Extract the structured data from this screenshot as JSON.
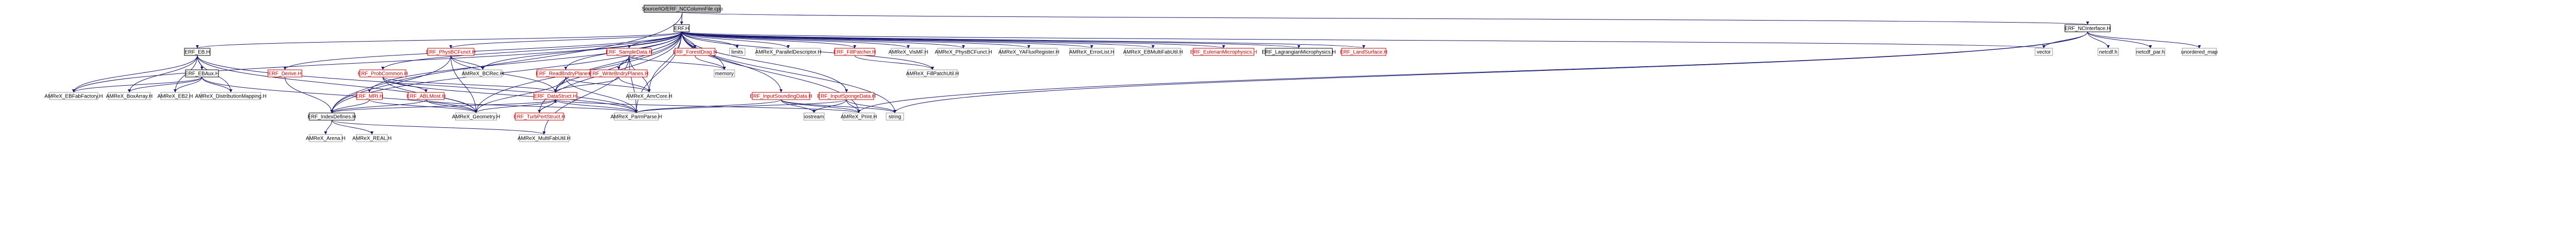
{
  "colors": {
    "edge": "#191970",
    "node_border_plain": "#999999",
    "node_border_documented": "#000000",
    "node_border_link": "#bf0000",
    "root_fill": "#bfbfbf"
  },
  "nodes": [
    {
      "id": "root",
      "label": "Source/IO/ERF_NCColumnFile.cpp",
      "style": "root"
    },
    {
      "id": "erf_h",
      "label": "ERF.H",
      "style": "black"
    },
    {
      "id": "ncinterface_h",
      "label": "ERF_NCInterface.H",
      "style": "black"
    },
    {
      "id": "eb_h",
      "label": "ERF_EB.H",
      "style": "black"
    },
    {
      "id": "ebaux_h",
      "label": "ERF_EBAux.H",
      "style": "black"
    },
    {
      "id": "derive_h",
      "label": "ERF_Derive.H",
      "style": "red"
    },
    {
      "id": "physbcfunct_h",
      "label": "ERF_PhysBCFunct.H",
      "style": "red"
    },
    {
      "id": "probcommon_h",
      "label": "ERF_ProbCommon.H",
      "style": "red"
    },
    {
      "id": "mri_h",
      "label": "ERF_MRI.H",
      "style": "red"
    },
    {
      "id": "ablmost_h",
      "label": "ERF_ABLMost.H",
      "style": "red"
    },
    {
      "id": "sampledata_h",
      "label": "ERF_SampleData.H",
      "style": "red"
    },
    {
      "id": "readbndry_h",
      "label": "ERF_ReadBndryPlanes.H",
      "style": "red"
    },
    {
      "id": "writebndry_h",
      "label": "ERF_WriteBndryPlanes.H",
      "style": "red"
    },
    {
      "id": "datastruct_h",
      "label": "ERF_DataStruct.H",
      "style": "red"
    },
    {
      "id": "turbpert_h",
      "label": "ERF_TurbPertStruct.H",
      "style": "red"
    },
    {
      "id": "forestdrag_h",
      "label": "ERF_ForestDrag.H",
      "style": "red"
    },
    {
      "id": "limits",
      "label": "limits",
      "style": "plain"
    },
    {
      "id": "paralleldesc_h",
      "label": "AMReX_ParallelDescriptor.H",
      "style": "plain"
    },
    {
      "id": "fillpatcher_h",
      "label": "ERF_FillPatcher.H",
      "style": "red"
    },
    {
      "id": "vismf_h",
      "label": "AMReX_VisMF.H",
      "style": "plain"
    },
    {
      "id": "amrex_physbc_h",
      "label": "AMReX_PhysBCFunct.H",
      "style": "plain"
    },
    {
      "id": "fluxregister_h",
      "label": "AMReX_YAFluxRegister.H",
      "style": "plain"
    },
    {
      "id": "errorlist_h",
      "label": "AMReX_ErrorList.H",
      "style": "plain"
    },
    {
      "id": "ebmultifab_h",
      "label": "AMReX_EBMultiFabUtil.H",
      "style": "plain"
    },
    {
      "id": "eulerian_h",
      "label": "ERF_EulerianMicrophysics.H",
      "style": "red"
    },
    {
      "id": "lagrangian_h",
      "label": "ERF_LagrangianMicrophysics.H",
      "style": "black"
    },
    {
      "id": "landsurface_h",
      "label": "ERF_LandSurface.H",
      "style": "red"
    },
    {
      "id": "vector",
      "label": "vector",
      "style": "plain"
    },
    {
      "id": "netcdf_h",
      "label": "netcdf.h",
      "style": "plain"
    },
    {
      "id": "netcdf_par_h",
      "label": "netcdf_par.h",
      "style": "plain"
    },
    {
      "id": "unordered_map",
      "label": "unordered_map",
      "style": "plain"
    },
    {
      "id": "bcrec_h",
      "label": "AMReX_BCRec.H",
      "style": "plain"
    },
    {
      "id": "memory",
      "label": "memory",
      "style": "plain"
    },
    {
      "id": "fillpatchutil_h",
      "label": "AMReX_FillPatchUtil.H",
      "style": "plain"
    },
    {
      "id": "ebfabfactory_h",
      "label": "AMReX_EBFabFactory.H",
      "style": "plain"
    },
    {
      "id": "boxarray_h",
      "label": "AMReX_BoxArray.H",
      "style": "plain"
    },
    {
      "id": "eb2_h",
      "label": "AMReX_EB2.H",
      "style": "plain"
    },
    {
      "id": "distmapping_h",
      "label": "AMReX_DistributionMapping.H",
      "style": "plain"
    },
    {
      "id": "amrcore_h",
      "label": "AMReX_AmrCore.H",
      "style": "plain"
    },
    {
      "id": "inputsounding_h",
      "label": "ERF_InputSoundingData.H",
      "style": "red"
    },
    {
      "id": "inputsponge_h",
      "label": "ERF_InputSpongeData.H",
      "style": "red"
    },
    {
      "id": "geometry_h",
      "label": "AMReX_Geometry.H",
      "style": "plain"
    },
    {
      "id": "parmparse_h",
      "label": "AMReX_ParmParse.H",
      "style": "plain"
    },
    {
      "id": "iostream",
      "label": "iostream",
      "style": "plain"
    },
    {
      "id": "print_h",
      "label": "AMReX_Print.H",
      "style": "plain"
    },
    {
      "id": "string",
      "label": "string",
      "style": "plain"
    },
    {
      "id": "indexdefines_h",
      "label": "ERF_IndexDefines.H",
      "style": "black"
    },
    {
      "id": "arena_h",
      "label": "AMReX_Arena.H",
      "style": "plain"
    },
    {
      "id": "real_h",
      "label": "AMReX_REAL.H",
      "style": "plain"
    },
    {
      "id": "multifabutil_h",
      "label": "AMReX_MultiFabUtil.H",
      "style": "plain"
    }
  ]
}
